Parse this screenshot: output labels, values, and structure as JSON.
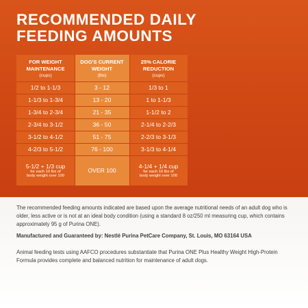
{
  "title": {
    "line1": "RECOMMENDED DAILY",
    "line2": "FEEDING AMOUNTS"
  },
  "table": {
    "headers": [
      {
        "line1": "FOR WEIGHT",
        "line2": "MAINTENANCE",
        "unit": "(cups)"
      },
      {
        "line1": "DOG'S CURRENT",
        "line2": "WEIGHT",
        "unit": "(lbs)"
      },
      {
        "line1": "25% CALORIE",
        "line2": "REDUCTION",
        "unit": "(cups)"
      }
    ],
    "rows": [
      [
        "1/2 to 1-1/3",
        "3 - 12",
        "1/3 to 1"
      ],
      [
        "1-1/3 to 1-3/4",
        "13 - 20",
        "1 to 1-1/3"
      ],
      [
        "1-3/4 to 2-3/4",
        "21 - 35",
        "1-1/2 to 2"
      ],
      [
        "2-3/4 to 3-1/2",
        "36 - 50",
        "2-1/4 to 2-2/3"
      ],
      [
        "3-1/2 to 4-1/2",
        "51 - 75",
        "2-2/3 to 3-1/3"
      ],
      [
        "4-2/3 to 5-1/2",
        "76 - 100",
        "3-1/3 to 4-1/4"
      ]
    ],
    "last_row": {
      "c1_main": "5-1/2 + 1/3 cup",
      "c1_note1": "for each 10 lbs of",
      "c1_note2": "body weight over 100",
      "c2": "OVER 100",
      "c3_main": "4-1/4 + 1/4 cup",
      "c3_note1": "for each 10 lbs of",
      "c3_note2": "body weight over 100"
    }
  },
  "paragraphs": {
    "feeding_note": "The recommended feeding amounts indicated are based upon the average nutritional needs of an adult dog who is older, less active or is not at an ideal body condition (using a standard 8 oz/250 ml measuring cup, which contains approximately 95 g of Purina ONE).",
    "manufacturer": "Manufactured and Guaranteed by: Nestlé Purina PetCare Company, St. Louis, MO 63164 USA",
    "aafco": "Animal feeding tests using AAFCO procedures substantiate that Purina ONE Plus Healthy Weight High-Protein Formula provides complete and balanced nutrition for maintenance of adult dogs."
  },
  "colors": {
    "background_orange": "#cf4714",
    "column_dark": "#dd5e1d",
    "column_light": "#e98a3b",
    "body_text": "#3c3c3c"
  }
}
